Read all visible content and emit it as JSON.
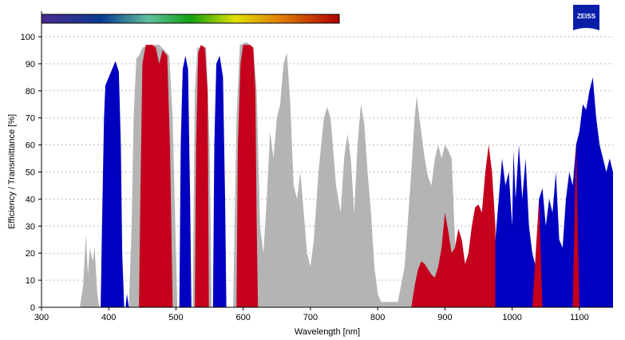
{
  "chart_data": {
    "type": "area",
    "title": "",
    "xlabel": "Wavelength [nm]",
    "ylabel": "Efficiency / Transmittance [%]",
    "xlim": [
      300,
      1150
    ],
    "ylim": [
      0,
      100
    ],
    "xticks": [
      300,
      400,
      500,
      600,
      700,
      800,
      900,
      1000,
      1100
    ],
    "yticks": [
      0,
      10,
      20,
      30,
      40,
      50,
      60,
      70,
      80,
      90,
      100
    ],
    "grid": "horizontal dotted",
    "logo": "ZEISS",
    "colors": {
      "gray": "#b4b4b4",
      "red": "#c4001c",
      "blue": "#0000c0"
    },
    "series": [
      {
        "name": "gray",
        "color": "#b4b4b4",
        "points": [
          [
            357,
            0
          ],
          [
            362,
            8
          ],
          [
            366,
            27
          ],
          [
            369,
            12
          ],
          [
            372,
            22
          ],
          [
            376,
            17
          ],
          [
            379,
            22
          ],
          [
            383,
            5
          ],
          [
            386,
            0
          ],
          [
            430,
            0
          ],
          [
            434,
            30
          ],
          [
            437,
            70
          ],
          [
            441,
            92
          ],
          [
            445,
            93
          ],
          [
            450,
            96
          ],
          [
            460,
            97
          ],
          [
            475,
            97
          ],
          [
            483,
            95
          ],
          [
            490,
            93
          ],
          [
            495,
            70
          ],
          [
            498,
            40
          ],
          [
            502,
            0
          ],
          [
            525,
            0
          ],
          [
            528,
            80
          ],
          [
            532,
            96
          ],
          [
            545,
            96
          ],
          [
            550,
            60
          ],
          [
            553,
            0
          ],
          [
            585,
            0
          ],
          [
            590,
            70
          ],
          [
            595,
            97
          ],
          [
            605,
            98
          ],
          [
            615,
            96
          ],
          [
            620,
            80
          ],
          [
            625,
            30
          ],
          [
            630,
            20
          ],
          [
            635,
            40
          ],
          [
            640,
            65
          ],
          [
            645,
            55
          ],
          [
            650,
            70
          ],
          [
            655,
            75
          ],
          [
            660,
            90
          ],
          [
            665,
            94
          ],
          [
            670,
            75
          ],
          [
            675,
            45
          ],
          [
            680,
            40
          ],
          [
            685,
            50
          ],
          [
            690,
            35
          ],
          [
            695,
            20
          ],
          [
            700,
            15
          ],
          [
            705,
            25
          ],
          [
            712,
            50
          ],
          [
            720,
            70
          ],
          [
            725,
            74
          ],
          [
            730,
            70
          ],
          [
            738,
            45
          ],
          [
            745,
            35
          ],
          [
            750,
            55
          ],
          [
            755,
            64
          ],
          [
            760,
            55
          ],
          [
            765,
            35
          ],
          [
            770,
            60
          ],
          [
            775,
            75
          ],
          [
            780,
            68
          ],
          [
            785,
            50
          ],
          [
            790,
            35
          ],
          [
            795,
            15
          ],
          [
            800,
            5
          ],
          [
            805,
            2
          ],
          [
            830,
            2
          ],
          [
            840,
            15
          ],
          [
            850,
            50
          ],
          [
            855,
            70
          ],
          [
            858,
            78
          ],
          [
            862,
            70
          ],
          [
            870,
            55
          ],
          [
            875,
            48
          ],
          [
            880,
            45
          ],
          [
            885,
            55
          ],
          [
            890,
            60
          ],
          [
            895,
            55
          ],
          [
            900,
            60
          ],
          [
            905,
            58
          ],
          [
            910,
            55
          ],
          [
            915,
            25
          ],
          [
            920,
            12
          ],
          [
            925,
            10
          ],
          [
            935,
            15
          ],
          [
            950,
            20
          ],
          [
            960,
            25
          ],
          [
            970,
            15
          ],
          [
            975,
            0
          ]
        ]
      },
      {
        "name": "blue",
        "color": "#0000c0",
        "points": [
          [
            388,
            0
          ],
          [
            390,
            30
          ],
          [
            393,
            70
          ],
          [
            395,
            82
          ],
          [
            400,
            85
          ],
          [
            405,
            88
          ],
          [
            410,
            91
          ],
          [
            415,
            87
          ],
          [
            418,
            60
          ],
          [
            420,
            20
          ],
          [
            423,
            0
          ],
          [
            425,
            0
          ],
          [
            427,
            5
          ],
          [
            430,
            0
          ],
          [
            505,
            0
          ],
          [
            507,
            60
          ],
          [
            510,
            88
          ],
          [
            514,
            93
          ],
          [
            518,
            88
          ],
          [
            521,
            40
          ],
          [
            523,
            0
          ],
          [
            555,
            0
          ],
          [
            557,
            60
          ],
          [
            560,
            90
          ],
          [
            565,
            93
          ],
          [
            570,
            85
          ],
          [
            573,
            40
          ],
          [
            575,
            0
          ],
          [
            960,
            0
          ],
          [
            965,
            3
          ],
          [
            975,
            25
          ],
          [
            980,
            40
          ],
          [
            985,
            55
          ],
          [
            990,
            45
          ],
          [
            995,
            50
          ],
          [
            1000,
            30
          ],
          [
            1002,
            58
          ],
          [
            1005,
            40
          ],
          [
            1010,
            60
          ],
          [
            1015,
            40
          ],
          [
            1020,
            55
          ],
          [
            1025,
            30
          ],
          [
            1030,
            20
          ],
          [
            1035,
            15
          ],
          [
            1040,
            40
          ],
          [
            1045,
            44
          ],
          [
            1050,
            30
          ],
          [
            1055,
            40
          ],
          [
            1060,
            35
          ],
          [
            1065,
            50
          ],
          [
            1070,
            25
          ],
          [
            1075,
            22
          ],
          [
            1080,
            40
          ],
          [
            1085,
            50
          ],
          [
            1090,
            45
          ],
          [
            1095,
            60
          ],
          [
            1100,
            65
          ],
          [
            1105,
            75
          ],
          [
            1110,
            73
          ],
          [
            1115,
            80
          ],
          [
            1120,
            85
          ],
          [
            1125,
            70
          ],
          [
            1130,
            60
          ],
          [
            1135,
            55
          ],
          [
            1140,
            50
          ],
          [
            1145,
            55
          ],
          [
            1150,
            50
          ],
          [
            1150,
            0
          ]
        ]
      },
      {
        "name": "red",
        "color": "#c4001c",
        "points": [
          [
            445,
            0
          ],
          [
            447,
            40
          ],
          [
            450,
            90
          ],
          [
            455,
            97
          ],
          [
            465,
            97
          ],
          [
            470,
            96
          ],
          [
            475,
            90
          ],
          [
            480,
            95
          ],
          [
            487,
            93
          ],
          [
            491,
            60
          ],
          [
            495,
            0
          ],
          [
            528,
            0
          ],
          [
            530,
            60
          ],
          [
            533,
            94
          ],
          [
            537,
            97
          ],
          [
            543,
            96
          ],
          [
            547,
            80
          ],
          [
            549,
            0
          ],
          [
            590,
            0
          ],
          [
            592,
            60
          ],
          [
            596,
            90
          ],
          [
            600,
            97
          ],
          [
            610,
            97
          ],
          [
            615,
            96
          ],
          [
            618,
            80
          ],
          [
            620,
            30
          ],
          [
            622,
            0
          ],
          [
            850,
            0
          ],
          [
            855,
            8
          ],
          [
            860,
            14
          ],
          [
            865,
            17
          ],
          [
            870,
            16
          ],
          [
            880,
            12
          ],
          [
            885,
            11
          ],
          [
            890,
            15
          ],
          [
            895,
            22
          ],
          [
            900,
            35
          ],
          [
            905,
            28
          ],
          [
            910,
            20
          ],
          [
            915,
            22
          ],
          [
            920,
            29
          ],
          [
            925,
            25
          ],
          [
            930,
            16
          ],
          [
            935,
            20
          ],
          [
            940,
            30
          ],
          [
            945,
            37
          ],
          [
            950,
            38
          ],
          [
            955,
            35
          ],
          [
            960,
            50
          ],
          [
            965,
            60
          ],
          [
            970,
            50
          ],
          [
            975,
            30
          ],
          [
            975,
            0
          ],
          [
            1030,
            0
          ],
          [
            1035,
            20
          ],
          [
            1040,
            40
          ],
          [
            1045,
            0
          ],
          [
            1090,
            0
          ],
          [
            1095,
            62
          ],
          [
            1100,
            0
          ]
        ]
      }
    ]
  }
}
